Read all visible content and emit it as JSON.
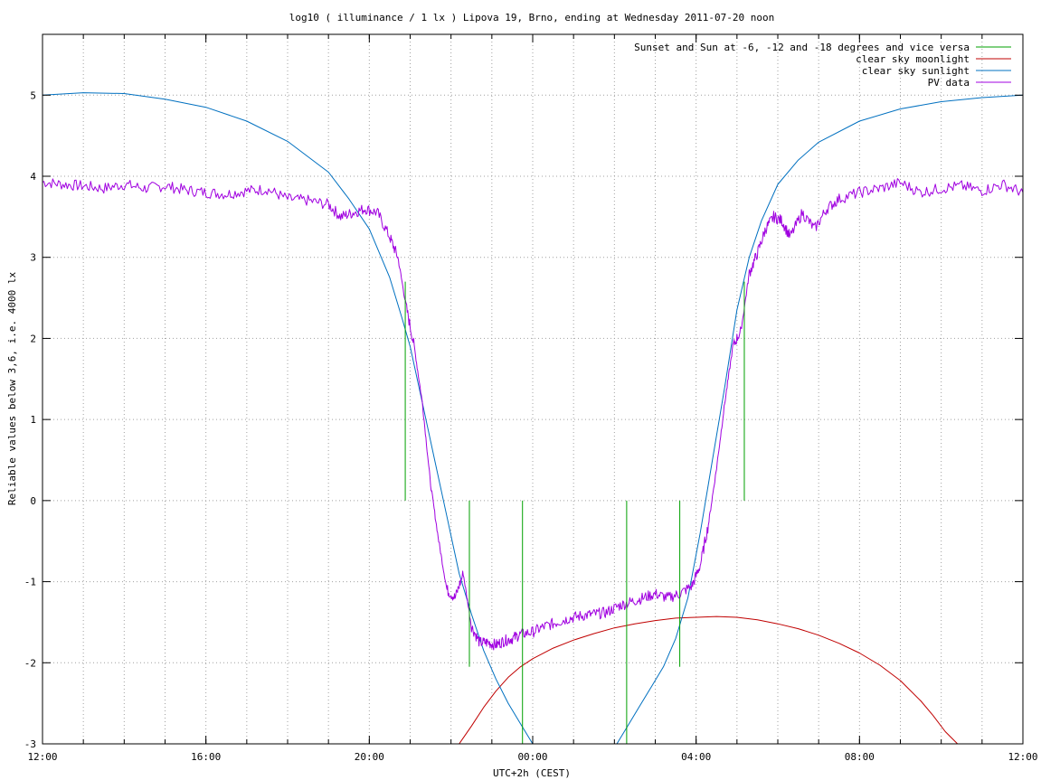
{
  "chart_data": {
    "type": "line",
    "title": "log10 ( illuminance / 1 lx ) Lipova 19, Brno, ending at Wednesday 2011-07-20 noon",
    "xlabel": "UTC+2h (CEST)",
    "ylabel": "Reliable values below 3,6, i.e. 4000 lx",
    "x_unit": "hours since 2011-07-19 12:00 local",
    "xlim": [
      0,
      24
    ],
    "ylim": [
      -3,
      5.75
    ],
    "x_ticks": [
      {
        "value": 0,
        "label": "12:00"
      },
      {
        "value": 4,
        "label": "16:00"
      },
      {
        "value": 8,
        "label": "20:00"
      },
      {
        "value": 12,
        "label": "00:00"
      },
      {
        "value": 16,
        "label": "04:00"
      },
      {
        "value": 20,
        "label": "08:00"
      },
      {
        "value": 24,
        "label": "12:00"
      }
    ],
    "y_ticks": [
      {
        "value": -3,
        "label": "-3"
      },
      {
        "value": -2,
        "label": "-2"
      },
      {
        "value": -1,
        "label": "-1"
      },
      {
        "value": 0,
        "label": "0"
      },
      {
        "value": 1,
        "label": "1"
      },
      {
        "value": 2,
        "label": "2"
      },
      {
        "value": 3,
        "label": "3"
      },
      {
        "value": 4,
        "label": "4"
      },
      {
        "value": 5,
        "label": "5"
      }
    ],
    "grid": true,
    "grid_x_step_hours": 1,
    "legend_position": "top-right",
    "series": [
      {
        "name": "Sunset and Sun at -6, -12 and -18 degrees and vice versa",
        "color": "#00a000",
        "kind": "vlines",
        "segments": [
          {
            "x": 8.88,
            "y0": 0,
            "y1": 2.7
          },
          {
            "x": 10.45,
            "y0": -2.05,
            "y1": 0
          },
          {
            "x": 11.75,
            "y0": -3,
            "y1": 0
          },
          {
            "x": 14.3,
            "y0": -3,
            "y1": 0
          },
          {
            "x": 15.6,
            "y0": -2.05,
            "y1": 0
          },
          {
            "x": 17.18,
            "y0": 0,
            "y1": 2.7
          }
        ]
      },
      {
        "name": "clear sky moonlight",
        "color": "#c00000",
        "kind": "line",
        "x": [
          10.2,
          10.5,
          10.8,
          11.1,
          11.4,
          11.7,
          12.0,
          12.5,
          13.0,
          13.5,
          14.0,
          14.5,
          15.0,
          15.5,
          16.0,
          16.5,
          17.0,
          17.5,
          18.0,
          18.5,
          19.0,
          19.5,
          20.0,
          20.5,
          21.0,
          21.5,
          21.8,
          22.1,
          22.4
        ],
        "y": [
          -3.0,
          -2.78,
          -2.55,
          -2.35,
          -2.18,
          -2.05,
          -1.95,
          -1.82,
          -1.72,
          -1.64,
          -1.57,
          -1.52,
          -1.48,
          -1.45,
          -1.44,
          -1.43,
          -1.44,
          -1.47,
          -1.52,
          -1.58,
          -1.66,
          -1.76,
          -1.88,
          -2.03,
          -2.22,
          -2.47,
          -2.65,
          -2.85,
          -3.0
        ]
      },
      {
        "name": "clear sky sunlight",
        "color": "#0070c0",
        "kind": "line",
        "x": [
          0,
          1,
          2,
          3,
          4,
          5,
          6,
          7,
          7.5,
          8,
          8.5,
          8.8,
          9.0,
          9.3,
          9.6,
          9.9,
          10.2,
          10.5,
          10.8,
          11.1,
          11.4,
          11.7,
          12.0,
          12.5,
          13.0,
          13.5,
          14.0,
          14.3,
          14.6,
          14.9,
          15.2,
          15.5,
          15.8,
          16.1,
          16.4,
          16.7,
          17.0,
          17.3,
          17.6,
          18.0,
          18.5,
          19.0,
          20.0,
          21.0,
          22.0,
          23.0,
          24.0
        ],
        "y": [
          5.0,
          5.03,
          5.02,
          4.95,
          4.85,
          4.68,
          4.43,
          4.05,
          3.72,
          3.35,
          2.75,
          2.25,
          1.9,
          1.2,
          0.5,
          -0.2,
          -0.9,
          -1.4,
          -1.85,
          -2.2,
          -2.5,
          -2.75,
          -3.0,
          -3.3,
          -3.5,
          -3.35,
          -3.05,
          -2.8,
          -2.55,
          -2.3,
          -2.05,
          -1.7,
          -1.2,
          -0.4,
          0.5,
          1.4,
          2.35,
          3.0,
          3.45,
          3.9,
          4.2,
          4.42,
          4.68,
          4.83,
          4.92,
          4.97,
          5.0
        ]
      },
      {
        "name": "PV data",
        "color": "#a000e0",
        "kind": "line",
        "x": [
          0,
          0.5,
          1.0,
          1.5,
          2.0,
          2.5,
          3.0,
          3.5,
          4.0,
          4.5,
          5.0,
          5.5,
          6.0,
          6.5,
          7.0,
          7.3,
          7.6,
          7.9,
          8.2,
          8.5,
          8.7,
          8.9,
          9.1,
          9.3,
          9.5,
          9.7,
          9.9,
          10.1,
          10.3,
          10.5,
          10.7,
          10.9,
          11.1,
          11.3,
          11.5,
          11.7,
          12.0,
          12.3,
          12.6,
          12.9,
          13.2,
          13.5,
          13.8,
          14.1,
          14.4,
          14.7,
          15.0,
          15.3,
          15.6,
          15.9,
          16.1,
          16.3,
          16.5,
          16.7,
          16.9,
          17.1,
          17.3,
          17.5,
          17.7,
          17.9,
          18.1,
          18.3,
          18.6,
          18.9,
          19.2,
          19.5,
          20.0,
          20.5,
          21.0,
          21.5,
          22.0,
          22.5,
          23.0,
          23.5,
          24.0
        ],
        "y": [
          3.93,
          3.9,
          3.88,
          3.85,
          3.9,
          3.85,
          3.88,
          3.83,
          3.8,
          3.78,
          3.82,
          3.84,
          3.72,
          3.7,
          3.65,
          3.5,
          3.55,
          3.6,
          3.55,
          3.25,
          3.0,
          2.4,
          1.9,
          1.2,
          0.2,
          -0.5,
          -1.1,
          -1.2,
          -0.9,
          -1.55,
          -1.75,
          -1.75,
          -1.78,
          -1.73,
          -1.7,
          -1.65,
          -1.62,
          -1.55,
          -1.5,
          -1.45,
          -1.42,
          -1.4,
          -1.38,
          -1.3,
          -1.25,
          -1.2,
          -1.15,
          -1.2,
          -1.15,
          -1.05,
          -0.8,
          -0.3,
          0.4,
          1.2,
          1.9,
          2.1,
          2.8,
          3.05,
          3.35,
          3.5,
          3.45,
          3.25,
          3.55,
          3.35,
          3.6,
          3.72,
          3.8,
          3.85,
          3.92,
          3.8,
          3.85,
          3.88,
          3.82,
          3.9,
          3.8
        ]
      }
    ]
  }
}
